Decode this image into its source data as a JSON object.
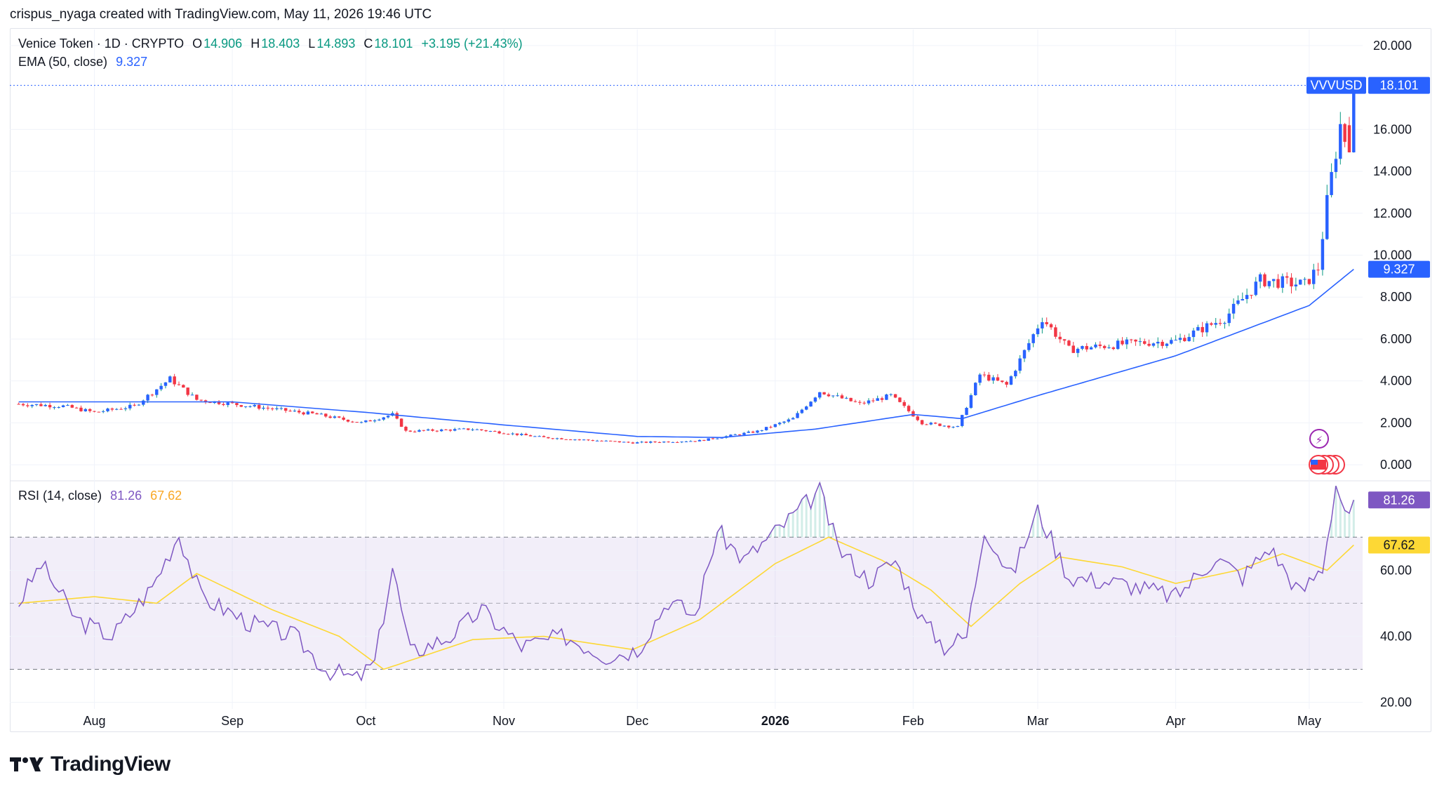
{
  "credit": "crispus_nyaga created with TradingView.com, May 11, 2026 19:46 UTC",
  "legend": {
    "title": "Venice Token · 1D · CRYPTO",
    "o_label": "O",
    "o_value": "14.906",
    "h_label": "H",
    "h_value": "18.403",
    "l_label": "L",
    "l_value": "14.893",
    "c_label": "C",
    "c_value": "18.101",
    "change": "+3.195 (+21.43%)",
    "ema_label": "EMA (50, close)",
    "ema_value": "9.327",
    "rsi_label": "RSI (14, close)",
    "rsi_value": "81.26",
    "rsi_ma_value": "67.62"
  },
  "badges": {
    "symbol": "VVVUSD",
    "last_price": "18.101",
    "ema": "9.327",
    "rsi": "81.26",
    "rsi_ma": "67.62"
  },
  "logo_text": "TradingView",
  "colors": {
    "up": "#089981",
    "down": "#f23645",
    "candle_up_fill": "#2962ff",
    "ema": "#2962ff",
    "rsi": "#7e57c2",
    "rsi_ma": "#fdd835",
    "grid": "#f0f3fa"
  },
  "chart_data": [
    {
      "type": "candlestick",
      "symbol": "VVVUSD",
      "interval": "1D",
      "x_ticks": [
        "Aug",
        "Sep",
        "Oct",
        "Nov",
        "Dec",
        "2026",
        "Feb",
        "Mar",
        "Apr",
        "May"
      ],
      "y_ticks": [
        "0.000",
        "2.000",
        "4.000",
        "6.000",
        "8.000",
        "10.000",
        "12.000",
        "14.000",
        "16.000",
        "20.000"
      ],
      "ylim": [
        -0.6,
        20.5
      ],
      "last": {
        "open": 14.906,
        "high": 18.403,
        "low": 14.893,
        "close": 18.101
      },
      "close_path": [
        {
          "date": "2025-07-15",
          "close": 2.9
        },
        {
          "date": "2025-07-25",
          "close": 2.8
        },
        {
          "date": "2025-08-01",
          "close": 2.5
        },
        {
          "date": "2025-08-10",
          "close": 2.8
        },
        {
          "date": "2025-08-18",
          "close": 4.1
        },
        {
          "date": "2025-08-24",
          "close": 3.1
        },
        {
          "date": "2025-09-05",
          "close": 2.8
        },
        {
          "date": "2025-09-20",
          "close": 2.4
        },
        {
          "date": "2025-09-30",
          "close": 2.0
        },
        {
          "date": "2025-10-07",
          "close": 2.4
        },
        {
          "date": "2025-10-10",
          "close": 1.6
        },
        {
          "date": "2025-10-25",
          "close": 1.7
        },
        {
          "date": "2025-11-10",
          "close": 1.3
        },
        {
          "date": "2025-11-30",
          "close": 1.05
        },
        {
          "date": "2025-12-15",
          "close": 1.15
        },
        {
          "date": "2025-12-28",
          "close": 1.6
        },
        {
          "date": "2026-01-05",
          "close": 2.2
        },
        {
          "date": "2026-01-11",
          "close": 3.5
        },
        {
          "date": "2026-01-20",
          "close": 2.9
        },
        {
          "date": "2026-01-27",
          "close": 3.3
        },
        {
          "date": "2026-02-03",
          "close": 2.0
        },
        {
          "date": "2026-02-11",
          "close": 1.8
        },
        {
          "date": "2026-02-16",
          "close": 4.3
        },
        {
          "date": "2026-02-22",
          "close": 3.8
        },
        {
          "date": "2026-03-02",
          "close": 7.0
        },
        {
          "date": "2026-03-08",
          "close": 5.5
        },
        {
          "date": "2026-03-22",
          "close": 5.8
        },
        {
          "date": "2026-04-01",
          "close": 5.9
        },
        {
          "date": "2026-04-12",
          "close": 7.0
        },
        {
          "date": "2026-04-20",
          "close": 8.8
        },
        {
          "date": "2026-04-30",
          "close": 8.6
        },
        {
          "date": "2026-05-03",
          "close": 9.4
        },
        {
          "date": "2026-05-05",
          "close": 12.5
        },
        {
          "date": "2026-05-08",
          "close": 16.2
        },
        {
          "date": "2026-05-10",
          "close": 14.906
        },
        {
          "date": "2026-05-11",
          "close": 18.101
        }
      ],
      "ema_50": [
        {
          "date": "2025-07-15",
          "value": 3.0
        },
        {
          "date": "2025-09-01",
          "value": 3.0
        },
        {
          "date": "2025-10-01",
          "value": 2.5
        },
        {
          "date": "2025-11-01",
          "value": 1.9
        },
        {
          "date": "2025-12-01",
          "value": 1.35
        },
        {
          "date": "2025-12-20",
          "value": 1.3
        },
        {
          "date": "2026-01-10",
          "value": 1.7
        },
        {
          "date": "2026-02-01",
          "value": 2.4
        },
        {
          "date": "2026-02-12",
          "value": 2.2
        },
        {
          "date": "2026-03-01",
          "value": 3.3
        },
        {
          "date": "2026-04-01",
          "value": 5.2
        },
        {
          "date": "2026-05-01",
          "value": 7.6
        },
        {
          "date": "2026-05-11",
          "value": 9.327
        }
      ]
    },
    {
      "type": "line",
      "title": "RSI (14, close)",
      "y_ticks": [
        "20.00",
        "40.00",
        "60.00"
      ],
      "ylim": [
        18,
        86
      ],
      "bands": {
        "upper": 70,
        "middle": 50,
        "lower": 30
      },
      "series": [
        {
          "name": "RSI",
          "points": [
            {
              "date": "2025-07-15",
              "value": 50
            },
            {
              "date": "2025-07-20",
              "value": 62
            },
            {
              "date": "2025-07-28",
              "value": 45
            },
            {
              "date": "2025-08-05",
              "value": 40
            },
            {
              "date": "2025-08-14",
              "value": 55
            },
            {
              "date": "2025-08-20",
              "value": 71
            },
            {
              "date": "2025-08-25",
              "value": 52
            },
            {
              "date": "2025-09-05",
              "value": 44
            },
            {
              "date": "2025-09-15",
              "value": 40
            },
            {
              "date": "2025-09-22",
              "value": 30
            },
            {
              "date": "2025-09-29",
              "value": 27
            },
            {
              "date": "2025-10-03",
              "value": 32
            },
            {
              "date": "2025-10-07",
              "value": 61
            },
            {
              "date": "2025-10-11",
              "value": 35
            },
            {
              "date": "2025-10-20",
              "value": 40
            },
            {
              "date": "2025-10-27",
              "value": 48
            },
            {
              "date": "2025-11-05",
              "value": 37
            },
            {
              "date": "2025-11-15",
              "value": 40
            },
            {
              "date": "2025-11-24",
              "value": 34
            },
            {
              "date": "2025-12-01",
              "value": 36
            },
            {
              "date": "2025-12-08",
              "value": 51
            },
            {
              "date": "2025-12-14",
              "value": 46
            },
            {
              "date": "2025-12-19",
              "value": 72
            },
            {
              "date": "2025-12-25",
              "value": 63
            },
            {
              "date": "2026-01-03",
              "value": 74
            },
            {
              "date": "2026-01-11",
              "value": 84
            },
            {
              "date": "2026-01-15",
              "value": 67
            },
            {
              "date": "2026-01-22",
              "value": 57
            },
            {
              "date": "2026-01-28",
              "value": 63
            },
            {
              "date": "2026-02-03",
              "value": 45
            },
            {
              "date": "2026-02-08",
              "value": 37
            },
            {
              "date": "2026-02-13",
              "value": 40
            },
            {
              "date": "2026-02-17",
              "value": 73
            },
            {
              "date": "2026-02-23",
              "value": 58
            },
            {
              "date": "2026-03-01",
              "value": 78
            },
            {
              "date": "2026-03-08",
              "value": 58
            },
            {
              "date": "2026-03-20",
              "value": 56
            },
            {
              "date": "2026-04-01",
              "value": 52
            },
            {
              "date": "2026-04-10",
              "value": 64
            },
            {
              "date": "2026-04-16",
              "value": 58
            },
            {
              "date": "2026-04-22",
              "value": 67
            },
            {
              "date": "2026-04-29",
              "value": 53
            },
            {
              "date": "2026-05-04",
              "value": 61
            },
            {
              "date": "2026-05-07",
              "value": 86
            },
            {
              "date": "2026-05-10",
              "value": 75
            },
            {
              "date": "2026-05-11",
              "value": 81.26
            }
          ]
        },
        {
          "name": "RSI-based MA",
          "points": [
            {
              "date": "2025-07-15",
              "value": 50
            },
            {
              "date": "2025-08-01",
              "value": 52
            },
            {
              "date": "2025-08-15",
              "value": 50
            },
            {
              "date": "2025-08-24",
              "value": 59
            },
            {
              "date": "2025-09-10",
              "value": 48
            },
            {
              "date": "2025-09-25",
              "value": 40
            },
            {
              "date": "2025-10-05",
              "value": 30
            },
            {
              "date": "2025-10-25",
              "value": 39
            },
            {
              "date": "2025-11-10",
              "value": 40
            },
            {
              "date": "2025-11-30",
              "value": 36
            },
            {
              "date": "2025-12-15",
              "value": 45
            },
            {
              "date": "2026-01-01",
              "value": 62
            },
            {
              "date": "2026-01-13",
              "value": 70
            },
            {
              "date": "2026-01-25",
              "value": 63
            },
            {
              "date": "2026-02-05",
              "value": 54
            },
            {
              "date": "2026-02-14",
              "value": 43
            },
            {
              "date": "2026-02-25",
              "value": 56
            },
            {
              "date": "2026-03-06",
              "value": 64
            },
            {
              "date": "2026-03-20",
              "value": 61
            },
            {
              "date": "2026-04-01",
              "value": 56
            },
            {
              "date": "2026-04-15",
              "value": 60
            },
            {
              "date": "2026-04-25",
              "value": 65
            },
            {
              "date": "2026-05-05",
              "value": 60
            },
            {
              "date": "2026-05-11",
              "value": 67.62
            }
          ]
        }
      ]
    }
  ]
}
